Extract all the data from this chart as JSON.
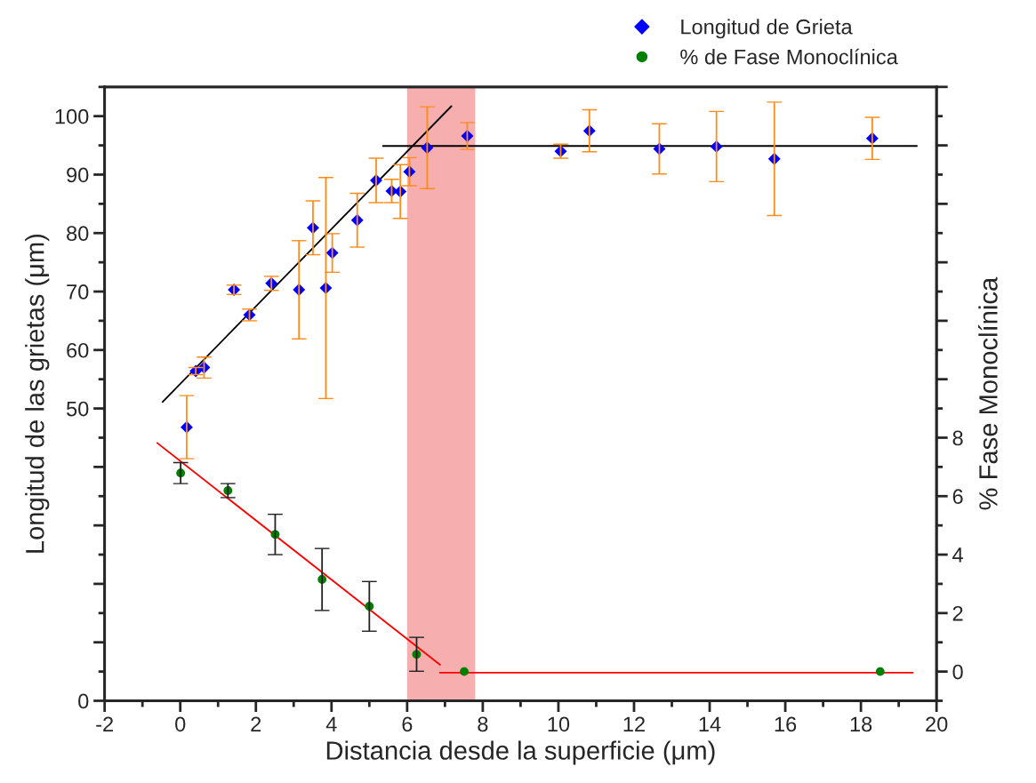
{
  "chart_data": {
    "type": "scatter",
    "xlabel": "Distancia desde la superficie (μm)",
    "ylabel": "Longitud de las grietas (μm)",
    "y2label": "% Fase Monoclínica",
    "xlim": [
      -2,
      20
    ],
    "xticks": [
      -2,
      0,
      2,
      4,
      6,
      8,
      10,
      12,
      14,
      16,
      18,
      20
    ],
    "ylim": [
      0,
      105
    ],
    "yticks": [
      0,
      {
        "value": 10,
        "label": null
      },
      {
        "value": 20,
        "label": null
      },
      {
        "value": 30,
        "label": null
      },
      {
        "value": 40,
        "label": null
      },
      50,
      60,
      70,
      80,
      90,
      100
    ],
    "y2lim": [
      -1,
      20
    ],
    "y2ticks": [
      0,
      2,
      4,
      6,
      8,
      {
        "value": 10,
        "label": null
      },
      {
        "value": 12,
        "label": null
      },
      {
        "value": 14,
        "label": null
      },
      {
        "value": 16,
        "label": null
      },
      {
        "value": 18,
        "label": null
      },
      {
        "value": 20,
        "label": null
      }
    ],
    "legend": "top right",
    "grid": false,
    "bands": [
      {
        "axis": "x",
        "from": 6,
        "to": 7.8,
        "color": "#f4a0a0"
      }
    ],
    "series": [
      {
        "name": "Longitud de Grieta",
        "color": "#0000ff",
        "marker": "diamond",
        "x": [
          0.17,
          0.41,
          0.63,
          1.42,
          1.83,
          2.41,
          3.14,
          3.51,
          3.85,
          4.02,
          4.68,
          5.18,
          5.59,
          5.82,
          6.06,
          6.53,
          7.59,
          10.06,
          10.82,
          12.67,
          14.18,
          15.71,
          18.3
        ],
        "values": [
          46.8,
          56.4,
          57.0,
          70.3,
          66.0,
          71.4,
          70.3,
          80.9,
          70.6,
          76.6,
          82.2,
          89.0,
          87.2,
          87.1,
          90.5,
          94.6,
          96.6,
          94.0,
          97.5,
          94.4,
          94.8,
          92.7,
          96.2
        ],
        "errors": [
          5.4,
          0.6,
          1.8,
          0.8,
          1.0,
          1.2,
          8.4,
          4.6,
          18.9,
          3.3,
          4.6,
          3.8,
          2.0,
          4.6,
          2.4,
          7.0,
          2.3,
          1.2,
          3.6,
          4.3,
          6.0,
          9.7,
          3.6
        ]
      },
      {
        "name": "% de Fase Monoclínica",
        "color": "#008000",
        "marker": "circle",
        "axis": "y2",
        "x": [
          0.01,
          1.26,
          2.51,
          3.75,
          5.0,
          6.25,
          7.51,
          18.51
        ],
        "values": [
          6.79,
          6.19,
          4.69,
          3.15,
          2.23,
          0.59,
          0,
          0
        ],
        "errors": [
          0.36,
          0.24,
          0.69,
          1.06,
          0.85,
          0.58,
          null,
          null
        ]
      },
      {
        "type": "line",
        "color": "#000000",
        "x": [
          -0.47,
          7.17
        ],
        "values": [
          51.1,
          101.7
        ]
      },
      {
        "type": "line",
        "color": "#000000",
        "x": [
          5.36,
          19.48
        ],
        "values": [
          94.9,
          94.9
        ]
      },
      {
        "type": "line",
        "color": "#ff0000",
        "axis": "y2",
        "x": [
          -0.61,
          6.87
        ],
        "values": [
          7.82,
          0.23
        ]
      },
      {
        "type": "line",
        "color": "#ff0000",
        "axis": "y2",
        "x": [
          6.87,
          19.37
        ],
        "values": [
          -0.04,
          -0.04
        ]
      }
    ]
  }
}
